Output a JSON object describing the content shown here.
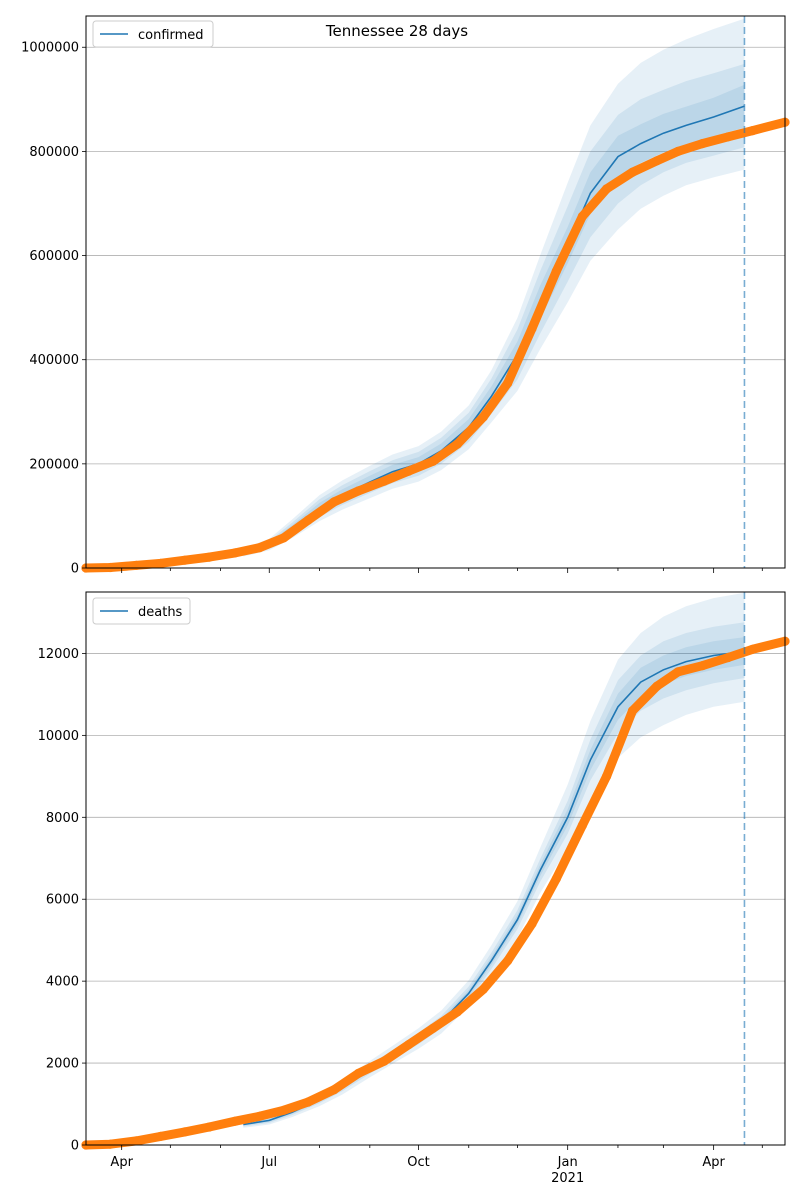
{
  "figure": {
    "title": "Tennessee 28 days"
  },
  "chart_data": [
    {
      "type": "line",
      "panel": "top",
      "title": "Tennessee 28 days",
      "xlabel": "",
      "ylabel": "",
      "x_axis": {
        "type": "date",
        "range": [
          "2020-03-10",
          "2021-05-15"
        ],
        "major_ticks": [
          {
            "date": "2020-04-01",
            "label": "Apr"
          },
          {
            "date": "2020-07-01",
            "label": "Jul"
          },
          {
            "date": "2020-10-01",
            "label": "Oct"
          },
          {
            "date": "2021-01-01",
            "label": "Jan",
            "sublabel": "2021"
          },
          {
            "date": "2021-04-01",
            "label": "Apr"
          }
        ],
        "tick_labels_visible": false
      },
      "ylim": [
        0,
        1060000
      ],
      "yticks": [
        {
          "value": 0,
          "label": "0"
        },
        {
          "value": 200000,
          "label": "200000"
        },
        {
          "value": 400000,
          "label": "400000"
        },
        {
          "value": 600000,
          "label": "600000"
        },
        {
          "value": 800000,
          "label": "800000"
        },
        {
          "value": 1000000,
          "label": "1000000"
        }
      ],
      "grid": "horizontal",
      "legend": {
        "position": "top-left",
        "entries": [
          "confirmed"
        ]
      },
      "vline_date": "2021-04-20",
      "colors": {
        "model": "#1f77b4",
        "observed": "#ff7f0e",
        "band": "#1f77b4",
        "vline": "#1f77b4"
      },
      "series": [
        {
          "name": "confirmed",
          "kind": "model",
          "x": [
            "2020-06-15",
            "2020-07-01",
            "2020-07-15",
            "2020-08-01",
            "2020-08-15",
            "2020-09-01",
            "2020-09-15",
            "2020-10-01",
            "2020-10-15",
            "2020-11-01",
            "2020-11-15",
            "2020-12-01",
            "2020-12-15",
            "2021-01-01",
            "2021-01-15",
            "2021-02-01",
            "2021-02-15",
            "2021-03-01",
            "2021-03-15",
            "2021-04-01",
            "2021-04-20"
          ],
          "y": [
            30000,
            45000,
            75000,
            115000,
            140000,
            165000,
            185000,
            200000,
            225000,
            270000,
            330000,
            410000,
            510000,
            620000,
            720000,
            790000,
            815000,
            835000,
            850000,
            866000,
            887000
          ],
          "bands": [
            {
              "lower": [
                22000,
                34000,
                57000,
                90000,
                112000,
                134000,
                152000,
                166000,
                188000,
                228000,
                280000,
                340000,
                420000,
                510000,
                590000,
                650000,
                690000,
                715000,
                735000,
                750000,
                765000
              ],
              "upper": [
                38000,
                56000,
                93000,
                140000,
                168000,
                196000,
                218000,
                234000,
                262000,
                312000,
                380000,
                480000,
                600000,
                740000,
                850000,
                930000,
                970000,
                995000,
                1015000,
                1035000,
                1055000
              ]
            },
            {
              "lower": [
                25000,
                38000,
                63000,
                98000,
                121000,
                144000,
                163000,
                177000,
                200000,
                242000,
                296000,
                362000,
                450000,
                550000,
                635000,
                700000,
                735000,
                760000,
                778000,
                792000,
                808000
              ],
              "upper": [
                35000,
                52000,
                87000,
                132000,
                159000,
                186000,
                207000,
                223000,
                250000,
                298000,
                364000,
                458000,
                570000,
                695000,
                800000,
                870000,
                900000,
                918000,
                935000,
                950000,
                968000
              ]
            },
            {
              "lower": [
                27000,
                41000,
                68000,
                105000,
                129000,
                153000,
                172000,
                187000,
                211000,
                254000,
                311000,
                385000,
                478000,
                585000,
                680000,
                750000,
                778000,
                798000,
                814000,
                829000,
                846000
              ],
              "upper": [
                33000,
                49000,
                82000,
                125000,
                151000,
                177000,
                198000,
                213000,
                239000,
                286000,
                349000,
                435000,
                542000,
                655000,
                760000,
                830000,
                852000,
                872000,
                886000,
                903000,
                928000
              ]
            }
          ]
        },
        {
          "name": "",
          "kind": "observed",
          "x": [
            "2020-03-10",
            "2020-03-25",
            "2020-04-10",
            "2020-04-25",
            "2020-05-10",
            "2020-05-25",
            "2020-06-10",
            "2020-06-25",
            "2020-07-10",
            "2020-07-25",
            "2020-08-10",
            "2020-08-25",
            "2020-09-10",
            "2020-09-25",
            "2020-10-10",
            "2020-10-25",
            "2020-11-10",
            "2020-11-25",
            "2020-12-10",
            "2020-12-25",
            "2021-01-10",
            "2021-01-25",
            "2021-02-10",
            "2021-02-25",
            "2021-03-10",
            "2021-03-25",
            "2021-04-10",
            "2021-04-25",
            "2021-05-15"
          ],
          "y": [
            0,
            1000,
            5000,
            9000,
            15000,
            21000,
            29000,
            39000,
            58000,
            92000,
            127000,
            148000,
            167000,
            186000,
            205000,
            238000,
            290000,
            355000,
            460000,
            570000,
            675000,
            728000,
            760000,
            782000,
            800000,
            815000,
            828000,
            840000,
            856000
          ]
        }
      ]
    },
    {
      "type": "line",
      "panel": "bottom",
      "title": "",
      "xlabel": "",
      "ylabel": "",
      "x_axis": {
        "type": "date",
        "range": [
          "2020-03-10",
          "2021-05-15"
        ],
        "major_ticks": [
          {
            "date": "2020-04-01",
            "label": "Apr"
          },
          {
            "date": "2020-07-01",
            "label": "Jul"
          },
          {
            "date": "2020-10-01",
            "label": "Oct"
          },
          {
            "date": "2021-01-01",
            "label": "Jan",
            "sublabel": "2021"
          },
          {
            "date": "2021-04-01",
            "label": "Apr"
          }
        ],
        "tick_labels_visible": true
      },
      "ylim": [
        0,
        13500
      ],
      "yticks": [
        {
          "value": 0,
          "label": "0"
        },
        {
          "value": 2000,
          "label": "2000"
        },
        {
          "value": 4000,
          "label": "4000"
        },
        {
          "value": 6000,
          "label": "6000"
        },
        {
          "value": 8000,
          "label": "8000"
        },
        {
          "value": 10000,
          "label": "10000"
        },
        {
          "value": 12000,
          "label": "12000"
        }
      ],
      "grid": "horizontal",
      "legend": {
        "position": "top-left",
        "entries": [
          "deaths"
        ]
      },
      "vline_date": "2021-04-20",
      "colors": {
        "model": "#1f77b4",
        "observed": "#ff7f0e",
        "band": "#1f77b4",
        "vline": "#1f77b4"
      },
      "series": [
        {
          "name": "deaths",
          "kind": "model",
          "x": [
            "2020-06-15",
            "2020-07-01",
            "2020-07-15",
            "2020-08-01",
            "2020-08-15",
            "2020-09-01",
            "2020-09-15",
            "2020-10-01",
            "2020-10-15",
            "2020-11-01",
            "2020-11-15",
            "2020-12-01",
            "2020-12-15",
            "2021-01-01",
            "2021-01-15",
            "2021-02-01",
            "2021-02-15",
            "2021-03-01",
            "2021-03-15",
            "2021-04-01",
            "2021-04-20"
          ],
          "y": [
            500,
            600,
            800,
            1100,
            1400,
            1850,
            2200,
            2600,
            3000,
            3700,
            4500,
            5500,
            6700,
            8000,
            9400,
            10700,
            11300,
            11600,
            11800,
            11950,
            12050
          ],
          "bands": [
            {
              "lower": [
                420,
                500,
                680,
                950,
                1230,
                1650,
                1980,
                2350,
                2720,
                3380,
                4120,
                5050,
                6150,
                7250,
                8450,
                9450,
                9950,
                10250,
                10500,
                10700,
                10820
              ],
              "upper": [
                580,
                700,
                920,
                1250,
                1570,
                2050,
                2420,
                2850,
                3280,
                4020,
                4880,
                5950,
                7250,
                8800,
                10350,
                11850,
                12500,
                12900,
                13150,
                13350,
                13480
              ]
            },
            {
              "lower": [
                450,
                540,
                730,
                1020,
                1310,
                1740,
                2080,
                2460,
                2850,
                3530,
                4300,
                5270,
                6420,
                7600,
                8900,
                10050,
                10600,
                10900,
                11100,
                11270,
                11400
              ],
              "upper": [
                550,
                660,
                870,
                1180,
                1490,
                1960,
                2320,
                2740,
                3150,
                3870,
                4700,
                5730,
                6980,
                8400,
                9900,
                11350,
                11950,
                12300,
                12500,
                12650,
                12760
              ]
            },
            {
              "lower": [
                475,
                570,
                765,
                1060,
                1355,
                1795,
                2140,
                2530,
                2925,
                3615,
                4400,
                5385,
                6560,
                7800,
                9150,
                10380,
                10950,
                11250,
                11450,
                11600,
                11720
              ],
              "upper": [
                525,
                630,
                835,
                1140,
                1445,
                1905,
                2260,
                2670,
                3075,
                3785,
                4600,
                5615,
                6840,
                8200,
                9650,
                11020,
                11650,
                11950,
                12150,
                12300,
                12400
              ]
            }
          ]
        },
        {
          "name": "",
          "kind": "observed",
          "x": [
            "2020-03-10",
            "2020-03-25",
            "2020-04-10",
            "2020-04-25",
            "2020-05-10",
            "2020-05-25",
            "2020-06-10",
            "2020-06-25",
            "2020-07-10",
            "2020-07-25",
            "2020-08-10",
            "2020-08-25",
            "2020-09-10",
            "2020-09-25",
            "2020-10-10",
            "2020-10-25",
            "2020-11-10",
            "2020-11-25",
            "2020-12-10",
            "2020-12-25",
            "2021-01-10",
            "2021-01-25",
            "2021-02-10",
            "2021-02-25",
            "2021-03-10",
            "2021-03-25",
            "2021-04-10",
            "2021-04-25",
            "2021-05-15"
          ],
          "y": [
            0,
            20,
            100,
            210,
            320,
            440,
            580,
            700,
            850,
            1050,
            1350,
            1750,
            2050,
            2450,
            2850,
            3250,
            3800,
            4500,
            5400,
            6500,
            7800,
            9000,
            10600,
            11200,
            11550,
            11700,
            11900,
            12100,
            12300
          ]
        }
      ]
    }
  ]
}
